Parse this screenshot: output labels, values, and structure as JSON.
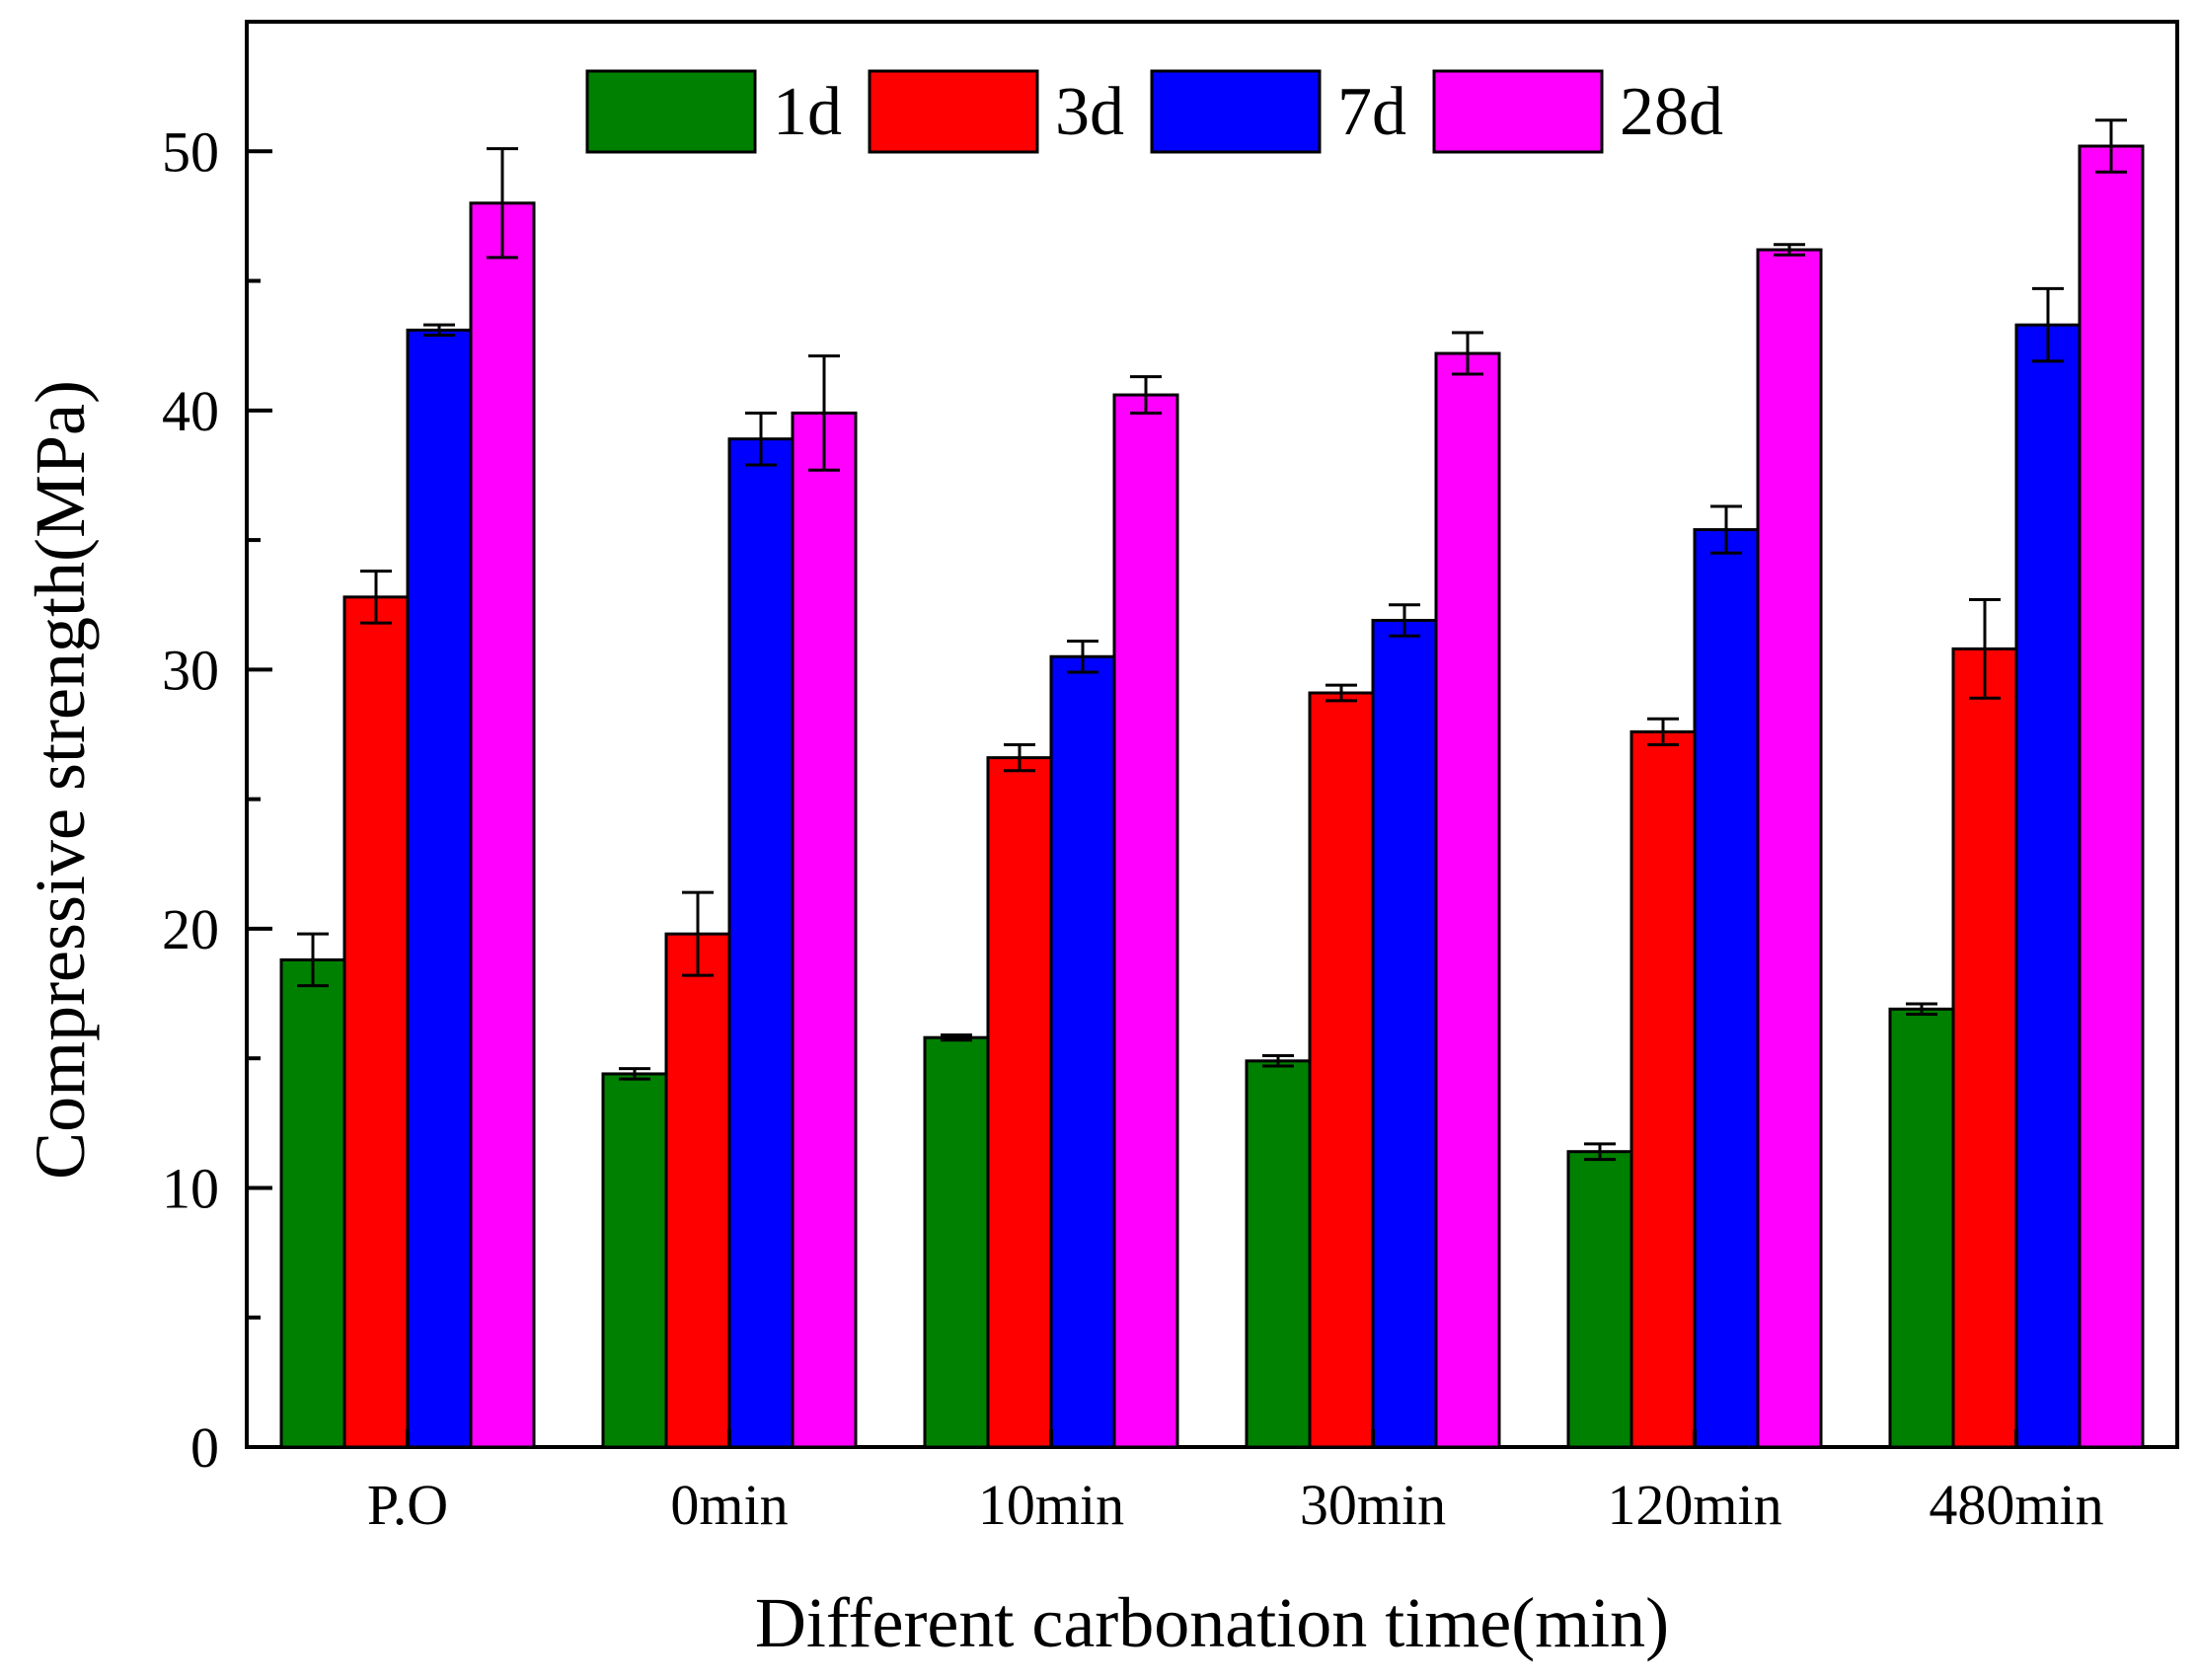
{
  "chart_data": {
    "type": "bar",
    "title": "",
    "xlabel": "Different carbonation time(min)",
    "ylabel": "Compressive strength(MPa)",
    "ylim": [
      0,
      55
    ],
    "yticks": [
      0,
      10,
      20,
      30,
      40,
      50
    ],
    "grid": false,
    "legend_position": "top",
    "categories": [
      "P.O",
      "0min",
      "10min",
      "30min",
      "120min",
      "480min"
    ],
    "series": [
      {
        "name": "1d",
        "color": "#008000",
        "values": [
          18.8,
          14.4,
          15.8,
          14.9,
          11.4,
          16.9
        ],
        "errors": [
          1.0,
          0.2,
          0.1,
          0.2,
          0.3,
          0.2
        ]
      },
      {
        "name": "3d",
        "color": "#FF0000",
        "values": [
          32.8,
          19.8,
          26.6,
          29.1,
          27.6,
          30.8
        ],
        "errors": [
          1.0,
          1.6,
          0.5,
          0.3,
          0.5,
          1.9
        ]
      },
      {
        "name": "7d",
        "color": "#0000FF",
        "values": [
          43.1,
          38.9,
          30.5,
          31.9,
          35.4,
          43.3
        ],
        "errors": [
          0.2,
          1.0,
          0.6,
          0.6,
          0.9,
          1.4
        ]
      },
      {
        "name": "28d",
        "color": "#FF00FF",
        "values": [
          48.0,
          39.9,
          40.6,
          42.2,
          46.2,
          50.2
        ],
        "errors": [
          2.1,
          2.2,
          0.7,
          0.8,
          0.2,
          1.0
        ]
      }
    ]
  }
}
